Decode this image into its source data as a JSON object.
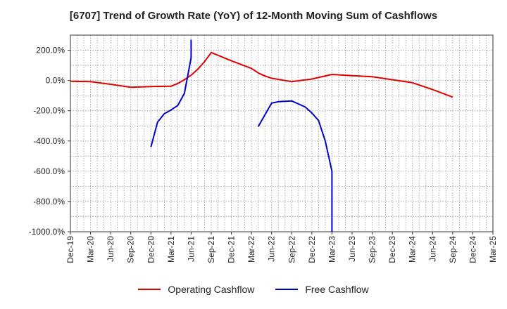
{
  "chart_data": {
    "type": "line",
    "title": "[6707]  Trend of Growth Rate (YoY) of 12-Month Moving Sum of Cashflows",
    "xlabel": "",
    "ylabel": "",
    "x_tick_labels": [
      "Dec-19",
      "Mar-20",
      "Jun-20",
      "Sep-20",
      "Dec-20",
      "Mar-21",
      "Jun-21",
      "Sep-21",
      "Dec-21",
      "Mar-22",
      "Jun-22",
      "Sep-22",
      "Dec-22",
      "Mar-23",
      "Jun-23",
      "Sep-23",
      "Dec-23",
      "Mar-24",
      "Jun-24",
      "Sep-24",
      "Dec-24",
      "Mar-25"
    ],
    "y_tick_labels": [
      "200.0%",
      "0.0%",
      "-200.0%",
      "-400.0%",
      "-600.0%",
      "-800.0%",
      "-1000.0%"
    ],
    "y_tick_values": [
      200,
      0,
      -200,
      -400,
      -600,
      -800,
      -1000
    ],
    "ylim": [
      -1000,
      300
    ],
    "grid": true,
    "legend_position": "bottom",
    "series": [
      {
        "name": "Operating Cashflow",
        "color": "#e00000",
        "x": [
          "Dec-19",
          "Mar-20",
          "Jun-20",
          "Sep-20",
          "Dec-20",
          "Mar-21",
          "Apr-21",
          "May-21",
          "Jun-21",
          "Jul-21",
          "Aug-21",
          "Sep-21",
          "Dec-21",
          "Mar-22",
          "Apr-22",
          "May-22",
          "Jun-22",
          "Sep-22",
          "Dec-22",
          "Mar-23",
          "Jun-23",
          "Sep-23",
          "Dec-23",
          "Mar-24",
          "Jun-24",
          "Sep-24"
        ],
        "values": [
          -5,
          -8,
          -25,
          -45,
          -40,
          -38,
          -20,
          5,
          35,
          75,
          125,
          185,
          130,
          80,
          50,
          30,
          15,
          -8,
          10,
          40,
          32,
          25,
          5,
          -15,
          -60,
          -110
        ]
      },
      {
        "name": "Free Cashflow",
        "color": "#0000cc",
        "x": [
          "Dec-20",
          "Jan-21",
          "Feb-21",
          "Mar-21",
          "Apr-21",
          "May-21",
          "Jun-21",
          "Jun-21",
          "Jul-21"
        ],
        "values": [
          -440,
          -275,
          -220,
          -195,
          -165,
          -85,
          150,
          270,
          null
        ]
      },
      {
        "name": "Free Cashflow",
        "color": "#0000cc",
        "x": [
          "Apr-22",
          "Jun-22",
          "Jul-22",
          "Aug-22",
          "Sep-22",
          "Oct-22",
          "Nov-22",
          "Dec-22",
          "Jan-23",
          "Feb-23",
          "Mar-23",
          "Mar-23"
        ],
        "values": [
          -305,
          -150,
          -140,
          -138,
          -135,
          -155,
          -175,
          -215,
          -265,
          -400,
          -600,
          -1000
        ]
      }
    ],
    "legend": [
      "Operating Cashflow",
      "Free Cashflow"
    ]
  }
}
